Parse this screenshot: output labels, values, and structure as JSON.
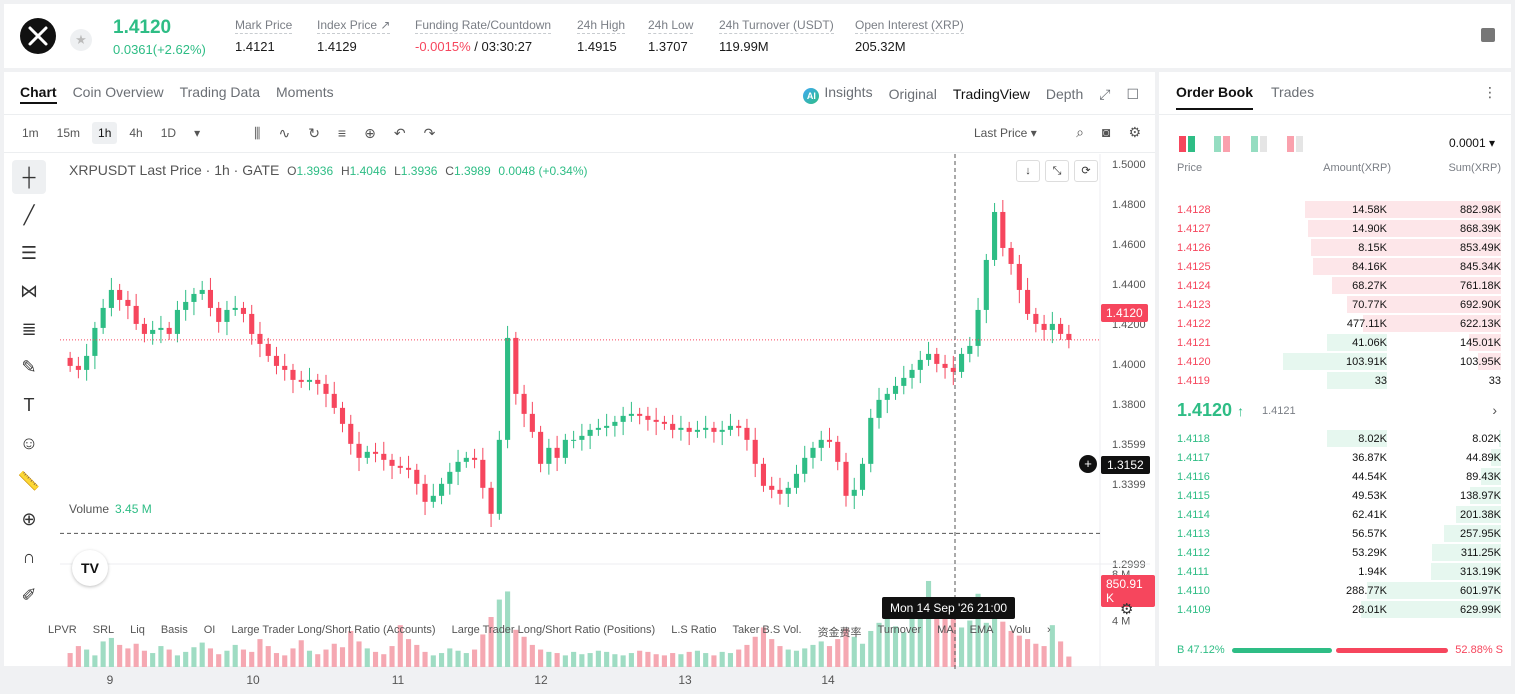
{
  "header": {
    "price": "1.4120",
    "change": "0.0361(+2.62%)",
    "stats": [
      {
        "label": "Mark Price",
        "value": "1.4121"
      },
      {
        "label": "Index Price ↗",
        "value": "1.4129"
      },
      {
        "label": "Funding Rate/Countdown",
        "value_neg": "-0.0015%",
        "value": " / 03:30:27"
      },
      {
        "label": "24h High",
        "value": "1.4915"
      },
      {
        "label": "24h Low",
        "value": "1.3707"
      },
      {
        "label": "24h Turnover (USDT)",
        "value": "119.99M"
      },
      {
        "label": "Open Interest (XRP)",
        "value": "205.32M"
      }
    ]
  },
  "chart_tabs": [
    "Chart",
    "Coin Overview",
    "Trading Data",
    "Moments"
  ],
  "view_tabs": {
    "insights": "Insights",
    "original": "Original",
    "tradingview": "TradingView",
    "depth": "Depth",
    "ai_badge": "AI"
  },
  "timeframes": [
    "1m",
    "15m",
    "1h",
    "4h",
    "1D"
  ],
  "toolbar": {
    "last_price": "Last Price"
  },
  "legend": {
    "title": "XRPUSDT Last Price · 1h · GATE",
    "o_label": "O",
    "o": "1.3936",
    "h_label": "H",
    "h": "1.4046",
    "l_label": "L",
    "l": "1.3936",
    "c_label": "C",
    "c": "1.3989",
    "chg": "0.0048 (+0.34%)"
  },
  "volume_legend": {
    "label": "Volume",
    "value": "3.45 M"
  },
  "tags": {
    "price": "1.4120",
    "cross": "1.3152",
    "volume": "850.91 K",
    "time": "Mon 14 Sep '26   21:00",
    "tv": "TV"
  },
  "indicators": [
    "LPVR",
    "SRL",
    "Liq",
    "Basis",
    "OI",
    "Large Trader Long/Short Ratio (Accounts)",
    "Large Trader Long/Short Ratio (Positions)",
    "L.S Ratio",
    "Taker B.S Vol.",
    "资金费率",
    "Turnover",
    "MA",
    "EMA",
    "Volu"
  ],
  "colors": {
    "up": "#2ebd85",
    "down": "#f6465d",
    "up_vol": "#9fdcc3",
    "down_vol": "#f5a8b2"
  },
  "chart_data": {
    "type": "candlestick",
    "y_ticks": [
      "1.5000",
      "1.4800",
      "1.4600",
      "1.4400",
      "1.4200",
      "1.4000",
      "1.3800",
      "1.3599",
      "1.3399",
      "1.2999"
    ],
    "ylim": [
      1.2999,
      1.5
    ],
    "x_ticks": [
      "9",
      "10",
      "11",
      "12",
      "13",
      "14"
    ],
    "vol_ticks": [
      "8 M",
      "4 M"
    ],
    "vol_max": 8,
    "closes": [
      1.399,
      1.397,
      1.404,
      1.418,
      1.428,
      1.437,
      1.432,
      1.429,
      1.42,
      1.415,
      1.417,
      1.418,
      1.415,
      1.427,
      1.431,
      1.435,
      1.437,
      1.428,
      1.421,
      1.427,
      1.428,
      1.425,
      1.415,
      1.41,
      1.404,
      1.399,
      1.397,
      1.392,
      1.391,
      1.392,
      1.39,
      1.385,
      1.378,
      1.37,
      1.36,
      1.353,
      1.356,
      1.355,
      1.352,
      1.349,
      1.348,
      1.347,
      1.34,
      1.331,
      1.334,
      1.34,
      1.346,
      1.351,
      1.353,
      1.352,
      1.338,
      1.325,
      1.362,
      1.413,
      1.385,
      1.375,
      1.366,
      1.35,
      1.358,
      1.353,
      1.362,
      1.362,
      1.364,
      1.367,
      1.368,
      1.369,
      1.371,
      1.374,
      1.375,
      1.374,
      1.372,
      1.371,
      1.37,
      1.367,
      1.368,
      1.366,
      1.367,
      1.368,
      1.366,
      1.367,
      1.369,
      1.368,
      1.362,
      1.35,
      1.339,
      1.337,
      1.335,
      1.338,
      1.345,
      1.353,
      1.358,
      1.362,
      1.361,
      1.351,
      1.334,
      1.337,
      1.35,
      1.373,
      1.382,
      1.385,
      1.389,
      1.393,
      1.397,
      1.402,
      1.405,
      1.4,
      1.398,
      1.396,
      1.405,
      1.409,
      1.427,
      1.452,
      1.476,
      1.458,
      1.45,
      1.437,
      1.425,
      1.42,
      1.417,
      1.42,
      1.415,
      1.412
    ],
    "volumes": [
      1.2,
      1.8,
      1.5,
      1.0,
      2.2,
      2.5,
      1.9,
      1.6,
      2.0,
      1.4,
      1.2,
      1.8,
      1.5,
      1.0,
      1.3,
      1.7,
      2.1,
      1.6,
      1.1,
      1.4,
      1.9,
      1.5,
      1.3,
      2.4,
      1.8,
      1.2,
      1.0,
      1.6,
      2.3,
      1.4,
      1.1,
      1.5,
      2.0,
      1.7,
      3.1,
      2.2,
      1.6,
      1.3,
      1.1,
      1.8,
      3.6,
      2.4,
      1.9,
      1.3,
      1.0,
      1.2,
      1.6,
      1.4,
      1.2,
      1.5,
      2.8,
      4.3,
      5.8,
      6.5,
      3.2,
      2.6,
      1.9,
      1.5,
      1.3,
      1.2,
      1.0,
      1.3,
      1.1,
      1.2,
      1.4,
      1.3,
      1.1,
      1.0,
      1.2,
      1.4,
      1.3,
      1.1,
      1.0,
      1.2,
      1.1,
      1.3,
      1.4,
      1.2,
      1.0,
      1.3,
      1.2,
      1.5,
      1.9,
      2.6,
      3.4,
      2.4,
      1.8,
      1.5,
      1.4,
      1.6,
      1.9,
      2.2,
      1.8,
      2.4,
      3.3,
      2.6,
      2.0,
      3.1,
      3.8,
      4.6,
      3.5,
      3.0,
      4.3,
      5.1,
      7.4,
      4.2,
      5.5,
      4.6,
      3.4,
      4.0,
      6.3,
      3.8,
      4.4,
      3.9,
      3.1,
      2.7,
      2.4,
      2.0,
      1.8,
      3.6,
      2.2,
      0.9
    ]
  },
  "orderbook": {
    "tabs": [
      "Order Book",
      "Trades"
    ],
    "precision": "0.0001",
    "headers": {
      "price": "Price",
      "amount": "Amount(XRP)",
      "sum": "Sum(XRP)"
    },
    "asks": [
      {
        "price": "1.4128",
        "amount": "14.58K",
        "sum": "882.98K"
      },
      {
        "price": "1.4127",
        "amount": "14.90K",
        "sum": "868.39K"
      },
      {
        "price": "1.4126",
        "amount": "8.15K",
        "sum": "853.49K"
      },
      {
        "price": "1.4125",
        "amount": "84.16K",
        "sum": "845.34K"
      },
      {
        "price": "1.4124",
        "amount": "68.27K",
        "sum": "761.18K"
      },
      {
        "price": "1.4123",
        "amount": "70.77K",
        "sum": "692.90K"
      },
      {
        "price": "1.4122",
        "amount": "477.11K",
        "sum": "622.13K"
      },
      {
        "price": "1.4121",
        "amount": "41.06K",
        "sum": "145.01K"
      },
      {
        "price": "1.4120",
        "amount": "103.91K",
        "sum": "103.95K"
      },
      {
        "price": "1.4119",
        "amount": "33",
        "sum": "33"
      }
    ],
    "mid": {
      "price": "1.4120",
      "arrow": "↑",
      "mark": "1.4121"
    },
    "bids": [
      {
        "price": "1.4118",
        "amount": "8.02K",
        "sum": "8.02K"
      },
      {
        "price": "1.4117",
        "amount": "36.87K",
        "sum": "44.89K"
      },
      {
        "price": "1.4116",
        "amount": "44.54K",
        "sum": "89.43K"
      },
      {
        "price": "1.4115",
        "amount": "49.53K",
        "sum": "138.97K"
      },
      {
        "price": "1.4114",
        "amount": "62.41K",
        "sum": "201.38K"
      },
      {
        "price": "1.4113",
        "amount": "56.57K",
        "sum": "257.95K"
      },
      {
        "price": "1.4112",
        "amount": "53.29K",
        "sum": "311.25K"
      },
      {
        "price": "1.4111",
        "amount": "1.94K",
        "sum": "313.19K"
      },
      {
        "price": "1.4110",
        "amount": "288.77K",
        "sum": "601.97K"
      },
      {
        "price": "1.4109",
        "amount": "28.01K",
        "sum": "629.99K"
      }
    ],
    "buy_ratio": "B 47.12%",
    "sell_ratio": "52.88% S"
  }
}
